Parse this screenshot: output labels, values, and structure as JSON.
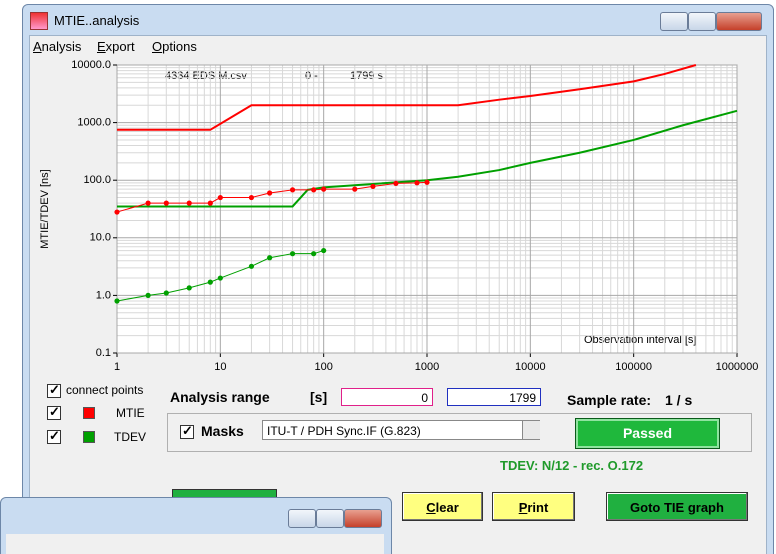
{
  "window": {
    "title": "MTIE..analysis",
    "menu": [
      "Analysis",
      "Export",
      "Options"
    ]
  },
  "chart_data": {
    "type": "line",
    "ylabel": "MTIE/TDEV [ns]",
    "xlabel": "Observation interval  [s]",
    "annotations": [
      "4334 EDS M.csv",
      "0 -",
      "1799 s"
    ],
    "xscale": "log",
    "yscale": "log",
    "grid": true,
    "xlim": [
      1,
      1000000
    ],
    "xticks": [
      1,
      10,
      100,
      1000,
      10000,
      100000,
      1000000
    ],
    "ylim": [
      0.1,
      10000
    ],
    "yticks": [
      {
        "value": 10000,
        "label": "10000.0"
      },
      {
        "value": 1000,
        "label": "1000.0"
      },
      {
        "value": 100,
        "label": "100.0"
      },
      {
        "value": 10,
        "label": "10.0"
      },
      {
        "value": 1,
        "label": "1.0"
      },
      {
        "value": 0.1,
        "label": "0.1"
      }
    ],
    "series": [
      {
        "color": "#ff0000",
        "markers": false,
        "x": [
          1,
          8,
          20,
          2000,
          5000,
          10000,
          30000,
          100000,
          200000,
          400000
        ],
        "values": [
          750,
          750,
          2000,
          2000,
          2500,
          2900,
          3800,
          5200,
          7000,
          10000
        ]
      },
      {
        "color": "#00a000",
        "markers": false,
        "x": [
          1,
          50,
          70,
          100,
          1000,
          2000,
          5000,
          10000,
          30000,
          100000,
          300000,
          1000000
        ],
        "values": [
          35,
          35,
          68,
          75,
          100,
          115,
          150,
          200,
          300,
          500,
          900,
          1600
        ]
      },
      {
        "name": "MTIE",
        "color": "#ff0000",
        "markers": true,
        "x": [
          1,
          2,
          3,
          5,
          8,
          10,
          20,
          30,
          50,
          80,
          100,
          200,
          300,
          500,
          800,
          1000
        ],
        "values": [
          28,
          40,
          40,
          40,
          40,
          50,
          50,
          60,
          68,
          68,
          70,
          70,
          78,
          88,
          90,
          92
        ]
      },
      {
        "name": "TDEV",
        "color": "#00a000",
        "markers": true,
        "x": [
          1,
          2,
          3,
          5,
          8,
          10,
          20,
          30,
          50,
          80,
          100
        ],
        "values": [
          0.8,
          1.0,
          1.1,
          1.35,
          1.7,
          2.0,
          3.2,
          4.5,
          5.3,
          5.3,
          6.0
        ]
      }
    ]
  },
  "controls": {
    "connect_points": "connect points",
    "analysis_range": "Analysis range",
    "range_unit": "[s]",
    "range_from": "0",
    "range_to": "1799",
    "sample_rate_label": "Sample rate:",
    "sample_rate": "1 / s",
    "masks": "Masks",
    "mask_select": "ITU-T / PDH Sync.IF (G.823)",
    "status": "Passed",
    "tdev_note": "TDEV: N/12 - rec. O.172",
    "buttons": [
      "Clear",
      "Print",
      "Goto TIE graph"
    ]
  }
}
